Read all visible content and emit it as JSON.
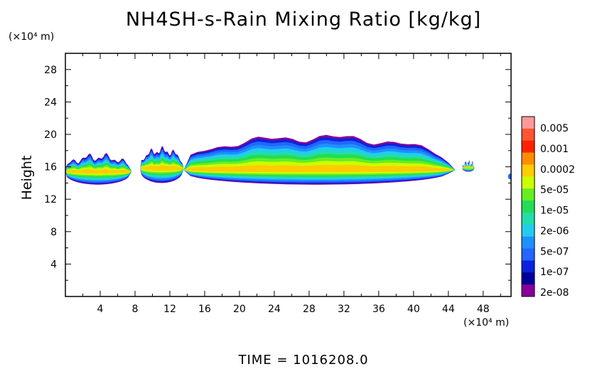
{
  "title": "NH4SH-s-Rain Mixing Ratio [kg/kg]",
  "y_unit": "(×10⁴ m)",
  "x_unit": "(×10⁴ m)",
  "ylabel": "Height",
  "time_label": "TIME  =  1016208.0",
  "chart_data": {
    "type": "heatmap",
    "title": "NH4SH-s-Rain Mixing Ratio [kg/kg]",
    "xlabel": "",
    "ylabel": "Height",
    "x_unit": "(×10⁴ m)",
    "y_unit": "(×10⁴ m)",
    "xlim": [
      0,
      51.2
    ],
    "ylim": [
      0,
      30
    ],
    "x_ticks": [
      4,
      8,
      12,
      16,
      20,
      24,
      28,
      32,
      36,
      40,
      44,
      48
    ],
    "y_ticks": [
      4,
      8,
      12,
      16,
      20,
      24,
      28
    ],
    "colorbar": {
      "labels": [
        "0.005",
        "0.001",
        "0.0002",
        "5e-05",
        "1e-05",
        "2e-06",
        "5e-07",
        "1e-07",
        "2e-08"
      ],
      "colors": [
        "#ff9a9a",
        "#ff5533",
        "#ff2200",
        "#ff8c00",
        "#ffcc00",
        "#ccff00",
        "#66ee22",
        "#22dd55",
        "#22ddaa",
        "#22ccee",
        "#1e90ff",
        "#2266ff",
        "#0a22dd",
        "#000099",
        "#880099"
      ]
    },
    "regions": [
      {
        "x0": 0.0,
        "x1": 7.6,
        "ymin": 13.8,
        "ymax": 17.2,
        "core": 15.4
      },
      {
        "x0": 8.6,
        "x1": 13.6,
        "ymin": 14.0,
        "ymax": 18.0,
        "core": 15.8
      },
      {
        "x0": 13.6,
        "x1": 44.8,
        "ymin": 13.8,
        "ymax": 19.6,
        "core": 15.6
      },
      {
        "x0": 45.6,
        "x1": 47.0,
        "ymin": 15.4,
        "ymax": 16.4,
        "core": 15.9
      }
    ]
  }
}
